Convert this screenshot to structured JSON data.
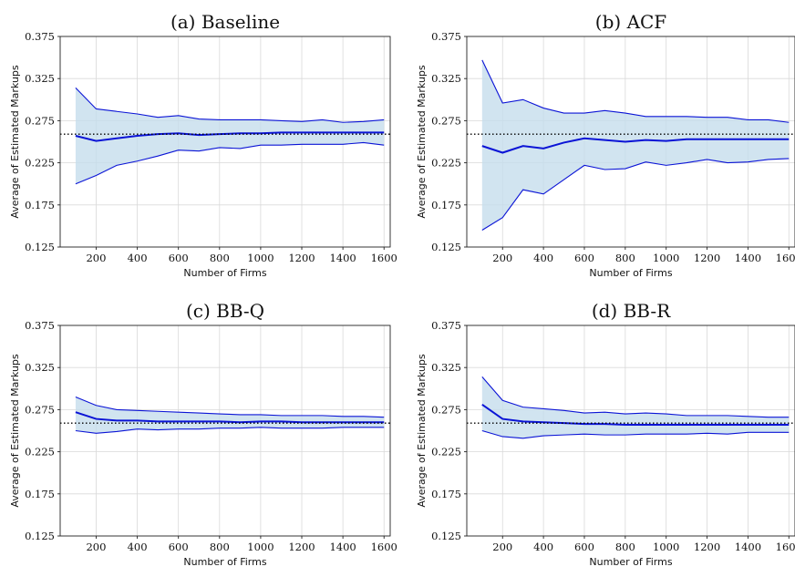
{
  "figure": {
    "true_markup": 0.259
  },
  "chart_data": [
    {
      "type": "line",
      "title": "(a) Baseline",
      "xlabel": "Number of Firms",
      "ylabel": "Average of Estimated Markups",
      "xlim": [
        25,
        1630
      ],
      "ylim": [
        0.125,
        0.375
      ],
      "xticks": [
        200,
        400,
        600,
        800,
        1000,
        1200,
        1400,
        1600
      ],
      "yticks": [
        "0.125",
        "0.175",
        "0.225",
        "0.275",
        "0.325",
        "0.375"
      ],
      "grid": true,
      "x": [
        100,
        200,
        300,
        400,
        500,
        600,
        700,
        800,
        900,
        1000,
        1100,
        1200,
        1300,
        1400,
        1500,
        1600
      ],
      "series": [
        {
          "role": "upper",
          "values": [
            0.314,
            0.289,
            0.286,
            0.283,
            0.279,
            0.281,
            0.277,
            0.276,
            0.276,
            0.276,
            0.275,
            0.274,
            0.276,
            0.273,
            0.274,
            0.276
          ]
        },
        {
          "role": "mean",
          "values": [
            0.257,
            0.251,
            0.254,
            0.257,
            0.259,
            0.26,
            0.258,
            0.259,
            0.26,
            0.26,
            0.261,
            0.261,
            0.261,
            0.261,
            0.261,
            0.261
          ]
        },
        {
          "role": "lower",
          "values": [
            0.2,
            0.21,
            0.222,
            0.227,
            0.233,
            0.24,
            0.239,
            0.243,
            0.242,
            0.246,
            0.246,
            0.247,
            0.247,
            0.247,
            0.249,
            0.246
          ]
        }
      ],
      "reference_line": 0.259
    },
    {
      "type": "line",
      "title": "(b) ACF",
      "xlabel": "Number of Firms",
      "ylabel": "Average of Estimated Markups",
      "xlim": [
        25,
        1630
      ],
      "ylim": [
        0.125,
        0.375
      ],
      "xticks": [
        200,
        400,
        600,
        800,
        1000,
        1200,
        1400,
        1600
      ],
      "yticks": [
        "0.125",
        "0.175",
        "0.225",
        "0.275",
        "0.325",
        "0.375"
      ],
      "grid": true,
      "x": [
        100,
        200,
        300,
        400,
        500,
        600,
        700,
        800,
        900,
        1000,
        1100,
        1200,
        1300,
        1400,
        1500,
        1600
      ],
      "series": [
        {
          "role": "upper",
          "values": [
            0.347,
            0.296,
            0.3,
            0.29,
            0.284,
            0.284,
            0.287,
            0.284,
            0.28,
            0.28,
            0.28,
            0.279,
            0.279,
            0.276,
            0.276,
            0.273
          ]
        },
        {
          "role": "mean",
          "values": [
            0.245,
            0.237,
            0.245,
            0.242,
            0.249,
            0.254,
            0.252,
            0.25,
            0.252,
            0.251,
            0.253,
            0.253,
            0.253,
            0.253,
            0.253,
            0.253
          ]
        },
        {
          "role": "lower",
          "values": [
            0.145,
            0.16,
            0.193,
            0.188,
            0.205,
            0.222,
            0.217,
            0.218,
            0.226,
            0.222,
            0.225,
            0.229,
            0.225,
            0.226,
            0.229,
            0.23
          ]
        }
      ],
      "reference_line": 0.259
    },
    {
      "type": "line",
      "title": "(c) BB-Q",
      "xlabel": "Number of Firms",
      "ylabel": "Average of Estimated Markups",
      "xlim": [
        25,
        1630
      ],
      "ylim": [
        0.125,
        0.375
      ],
      "xticks": [
        200,
        400,
        600,
        800,
        1000,
        1200,
        1400,
        1600
      ],
      "yticks": [
        "0.125",
        "0.175",
        "0.225",
        "0.275",
        "0.325",
        "0.375"
      ],
      "grid": true,
      "x": [
        100,
        200,
        300,
        400,
        500,
        600,
        700,
        800,
        900,
        1000,
        1100,
        1200,
        1300,
        1400,
        1500,
        1600
      ],
      "series": [
        {
          "role": "upper",
          "values": [
            0.29,
            0.28,
            0.275,
            0.274,
            0.273,
            0.272,
            0.271,
            0.27,
            0.269,
            0.269,
            0.268,
            0.268,
            0.268,
            0.267,
            0.267,
            0.266
          ]
        },
        {
          "role": "mean",
          "values": [
            0.272,
            0.264,
            0.262,
            0.262,
            0.261,
            0.261,
            0.261,
            0.261,
            0.26,
            0.261,
            0.261,
            0.26,
            0.26,
            0.26,
            0.26,
            0.26
          ]
        },
        {
          "role": "lower",
          "values": [
            0.25,
            0.247,
            0.249,
            0.252,
            0.251,
            0.252,
            0.252,
            0.253,
            0.253,
            0.254,
            0.253,
            0.253,
            0.253,
            0.254,
            0.254,
            0.254
          ]
        }
      ],
      "reference_line": 0.259
    },
    {
      "type": "line",
      "title": "(d) BB-R",
      "xlabel": "Number of Firms",
      "ylabel": "Average of Estimated Markups",
      "xlim": [
        25,
        1630
      ],
      "ylim": [
        0.125,
        0.375
      ],
      "xticks": [
        200,
        400,
        600,
        800,
        1000,
        1200,
        1400,
        1600
      ],
      "yticks": [
        "0.125",
        "0.175",
        "0.225",
        "0.275",
        "0.325",
        "0.375"
      ],
      "grid": true,
      "x": [
        100,
        200,
        300,
        400,
        500,
        600,
        700,
        800,
        900,
        1000,
        1100,
        1200,
        1300,
        1400,
        1500,
        1600
      ],
      "series": [
        {
          "role": "upper",
          "values": [
            0.314,
            0.286,
            0.278,
            0.276,
            0.274,
            0.271,
            0.272,
            0.27,
            0.271,
            0.27,
            0.268,
            0.268,
            0.268,
            0.267,
            0.266,
            0.266
          ]
        },
        {
          "role": "mean",
          "values": [
            0.281,
            0.264,
            0.261,
            0.26,
            0.259,
            0.258,
            0.258,
            0.257,
            0.257,
            0.257,
            0.257,
            0.257,
            0.257,
            0.257,
            0.257,
            0.257
          ]
        },
        {
          "role": "lower",
          "values": [
            0.25,
            0.243,
            0.241,
            0.244,
            0.245,
            0.246,
            0.245,
            0.245,
            0.246,
            0.246,
            0.246,
            0.247,
            0.246,
            0.248,
            0.248,
            0.248
          ]
        }
      ],
      "reference_line": 0.259
    }
  ]
}
